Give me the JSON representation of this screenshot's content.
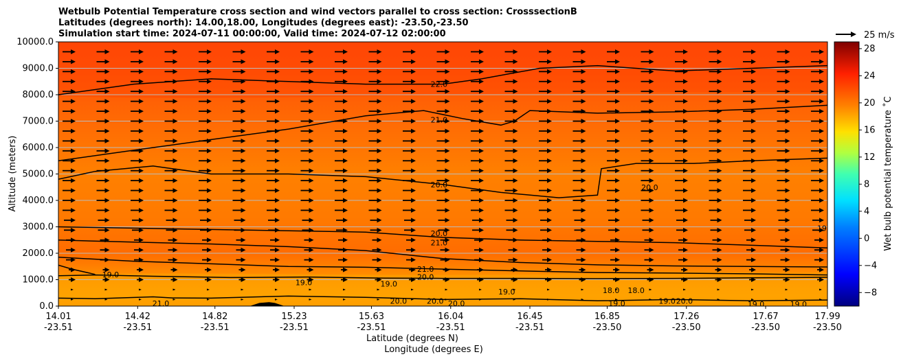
{
  "chart_data": {
    "type": "heatmap",
    "title_lines": [
      "Wetbulb Potential Temperature cross section and wind vectors parallel to cross section: CrosssectionB",
      "Latitudes (degrees north): 14.00,18.00, Longitudes (degrees east): -23.50,-23.50",
      "Simulation start time: 2024-07-11 00:00:00, Valid time: 2024-07-12 02:00:00"
    ],
    "ylabel": "Altitude (meters)",
    "xlabel_lat": "Latitude (degrees N)",
    "xlabel_lon": "Longitude (degrees E)",
    "ylim": [
      0,
      10000
    ],
    "yticks": [
      "0.0",
      "1000.0",
      "2000.0",
      "3000.0",
      "4000.0",
      "5000.0",
      "6000.0",
      "7000.0",
      "8000.0",
      "9000.0",
      "10000.0"
    ],
    "xlim": [
      14.01,
      17.99
    ],
    "xticks": [
      {
        "lat": "14.01",
        "lon": "-23.51"
      },
      {
        "lat": "14.42",
        "lon": "-23.51"
      },
      {
        "lat": "14.82",
        "lon": "-23.51"
      },
      {
        "lat": "15.23",
        "lon": "-23.51"
      },
      {
        "lat": "15.63",
        "lon": "-23.51"
      },
      {
        "lat": "16.04",
        "lon": "-23.51"
      },
      {
        "lat": "16.45",
        "lon": "-23.51"
      },
      {
        "lat": "16.85",
        "lon": "-23.50"
      },
      {
        "lat": "17.26",
        "lon": "-23.50"
      },
      {
        "lat": "17.67",
        "lon": "-23.50"
      },
      {
        "lat": "17.99",
        "lon": "-23.50"
      }
    ],
    "grid": "horizontal",
    "colorbar": {
      "label": "Wet bulb potential temperature ˚C",
      "range": [
        -10,
        29
      ],
      "ticks": [
        "−8",
        "−4",
        "0",
        "4",
        "8",
        "12",
        "16",
        "20",
        "24",
        "28"
      ]
    },
    "quiver_key": {
      "label": "25 m/s",
      "speed": 25
    },
    "contours": [
      {
        "level": 19.0,
        "points": [
          [
            14.01,
            300
          ],
          [
            14.2,
            280
          ],
          [
            14.5,
            350
          ],
          [
            14.6,
            310
          ],
          [
            14.8,
            300
          ],
          [
            15.2,
            380
          ],
          [
            15.6,
            330
          ],
          [
            16.0,
            250
          ],
          [
            16.4,
            280
          ],
          [
            16.8,
            200
          ],
          [
            17.2,
            250
          ],
          [
            17.6,
            200
          ],
          [
            17.99,
            230
          ]
        ]
      },
      {
        "level": 19.0,
        "points": [
          [
            14.01,
            1150
          ],
          [
            14.2,
            1180
          ],
          [
            14.5,
            1130
          ],
          [
            14.9,
            1080
          ],
          [
            15.3,
            1100
          ],
          [
            15.7,
            1060
          ],
          [
            16.0,
            1050
          ],
          [
            16.4,
            1050
          ],
          [
            16.8,
            1040
          ],
          [
            17.2,
            1050
          ],
          [
            17.6,
            1070
          ],
          [
            17.99,
            1090
          ]
        ]
      },
      {
        "level": 19.0,
        "points": [
          [
            14.01,
            1550
          ],
          [
            14.08,
            1400
          ],
          [
            14.2,
            1200
          ]
        ]
      },
      {
        "level": 20.0,
        "points": [
          [
            14.01,
            1850
          ],
          [
            14.4,
            1700
          ],
          [
            14.8,
            1600
          ],
          [
            15.2,
            1500
          ],
          [
            15.6,
            1470
          ],
          [
            16.0,
            1400
          ],
          [
            16.4,
            1330
          ],
          [
            16.8,
            1270
          ],
          [
            17.2,
            1250
          ],
          [
            17.6,
            1220
          ],
          [
            17.99,
            1180
          ]
        ]
      },
      {
        "level": 21.0,
        "points": [
          [
            14.01,
            2500
          ],
          [
            14.4,
            2420
          ],
          [
            14.8,
            2350
          ],
          [
            15.2,
            2250
          ],
          [
            15.6,
            2100
          ],
          [
            16.0,
            1800
          ],
          [
            16.4,
            1650
          ],
          [
            16.8,
            1560
          ],
          [
            17.2,
            1520
          ],
          [
            17.6,
            1500
          ],
          [
            17.99,
            1480
          ]
        ]
      },
      {
        "level": 20.0,
        "points": [
          [
            14.01,
            3000
          ],
          [
            14.4,
            2950
          ],
          [
            14.8,
            2900
          ],
          [
            15.2,
            2850
          ],
          [
            15.6,
            2800
          ],
          [
            16.0,
            2600
          ],
          [
            16.4,
            2500
          ],
          [
            16.8,
            2450
          ],
          [
            17.2,
            2400
          ],
          [
            17.6,
            2300
          ],
          [
            17.99,
            2200
          ]
        ]
      },
      {
        "level": 20.0,
        "points": [
          [
            14.01,
            4800
          ],
          [
            14.2,
            5100
          ],
          [
            14.5,
            5300
          ],
          [
            14.8,
            5000
          ],
          [
            15.2,
            5000
          ],
          [
            15.6,
            4900
          ],
          [
            16.0,
            4600
          ],
          [
            16.3,
            4300
          ],
          [
            16.6,
            4100
          ],
          [
            16.8,
            4200
          ],
          [
            16.82,
            5200
          ],
          [
            17.0,
            5400
          ],
          [
            17.3,
            5400
          ],
          [
            17.6,
            5500
          ],
          [
            17.99,
            5600
          ]
        ]
      },
      {
        "level": 21.0,
        "points": [
          [
            14.01,
            5500
          ],
          [
            14.4,
            5900
          ],
          [
            14.8,
            6300
          ],
          [
            15.2,
            6700
          ],
          [
            15.6,
            7200
          ],
          [
            15.9,
            7400
          ],
          [
            16.1,
            7100
          ],
          [
            16.3,
            6850
          ],
          [
            16.37,
            7000
          ],
          [
            16.45,
            7400
          ],
          [
            16.8,
            7300
          ],
          [
            17.2,
            7350
          ],
          [
            17.6,
            7450
          ],
          [
            17.99,
            7600
          ]
        ]
      },
      {
        "level": 22.0,
        "points": [
          [
            14.01,
            8000
          ],
          [
            14.4,
            8400
          ],
          [
            14.8,
            8600
          ],
          [
            15.2,
            8500
          ],
          [
            15.6,
            8400
          ],
          [
            16.0,
            8400
          ],
          [
            16.2,
            8600
          ],
          [
            16.5,
            9000
          ],
          [
            16.8,
            9100
          ],
          [
            17.2,
            8900
          ],
          [
            17.6,
            9000
          ],
          [
            17.99,
            9100
          ]
        ]
      }
    ],
    "contour_labels": [
      {
        "text": "22.0",
        "x": 15.98,
        "y": 8400
      },
      {
        "text": "21.0",
        "x": 15.98,
        "y": 7050
      },
      {
        "text": "20.0",
        "x": 15.98,
        "y": 4600
      },
      {
        "text": "20.0",
        "x": 17.07,
        "y": 4500
      },
      {
        "text": "20.0",
        "x": 15.98,
        "y": 2750
      },
      {
        "text": "21.0",
        "x": 15.98,
        "y": 2400
      },
      {
        "text": "21.0",
        "x": 15.91,
        "y": 1400
      },
      {
        "text": "20.0",
        "x": 15.91,
        "y": 1100
      },
      {
        "text": "19.0",
        "x": 15.28,
        "y": 900
      },
      {
        "text": "19.0",
        "x": 14.28,
        "y": 1200
      },
      {
        "text": "19.0",
        "x": 15.72,
        "y": 850
      },
      {
        "text": "19.0",
        "x": 16.33,
        "y": 550
      },
      {
        "text": "20.0",
        "x": 15.77,
        "y": 200
      },
      {
        "text": "20.0",
        "x": 15.96,
        "y": 200
      },
      {
        "text": "20.0",
        "x": 16.07,
        "y": 100
      },
      {
        "text": "21.0",
        "x": 14.54,
        "y": 100
      },
      {
        "text": "19.0",
        "x": 17.62,
        "y": 80
      },
      {
        "text": "19.0",
        "x": 17.84,
        "y": 80
      },
      {
        "text": "19.0",
        "x": 17.98,
        "y": 2950
      },
      {
        "text": "18.0",
        "x": 16.87,
        "y": 600
      },
      {
        "text": "18.0",
        "x": 17.0,
        "y": 600
      },
      {
        "text": "19.0",
        "x": 16.9,
        "y": 100
      },
      {
        "text": "19.0",
        "x": 17.16,
        "y": 200
      },
      {
        "text": "20.0",
        "x": 17.25,
        "y": 200
      }
    ],
    "terrain": {
      "points": [
        [
          15.0,
          0
        ],
        [
          15.05,
          120
        ],
        [
          15.1,
          150
        ],
        [
          15.13,
          120
        ],
        [
          15.18,
          0
        ]
      ]
    }
  }
}
